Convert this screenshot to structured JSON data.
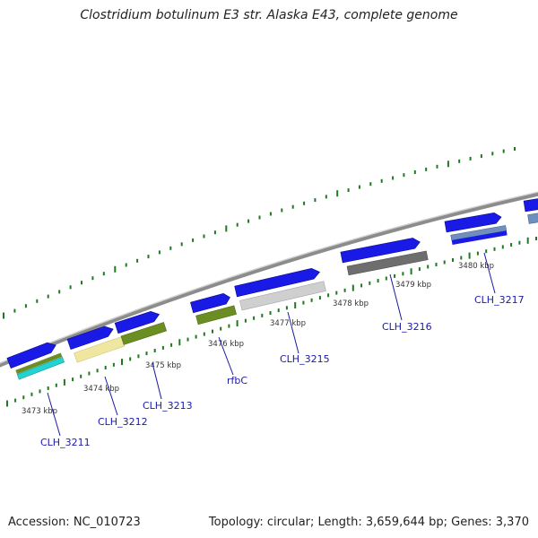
{
  "title": "Clostridium botulinum E3 str. Alaska E43, complete genome",
  "footer": {
    "accession": "Accession: NC_010723",
    "summary": "Topology: circular; Length: 3,659,644 bp; Genes: 3,370"
  },
  "ticks": [
    "3473 kbp",
    "3474 kbp",
    "3475 kbp",
    "3476 kbp",
    "3477 kbp",
    "3478 kbp",
    "3479 kbp",
    "3480 kbp"
  ],
  "gene_labels": [
    "CLH_3211",
    "CLH_3212",
    "CLH_3213",
    "rfbC",
    "CLH_3215",
    "CLH_3216",
    "CLH_3217"
  ],
  "colors": {
    "backbone": "#8c8c8c",
    "gene_arrow": "#1a1ae6",
    "tick_green": "#1f7a1f",
    "label_blue": "#1a1aa6",
    "cog_olive": "#6b8e23",
    "cog_cyan": "#22d3d3",
    "cog_khaki": "#efe6a0",
    "cog_lightgray": "#cfcfcf",
    "cog_darkgray": "#6e6e6e",
    "cog_steelblue": "#6f8fbf"
  }
}
